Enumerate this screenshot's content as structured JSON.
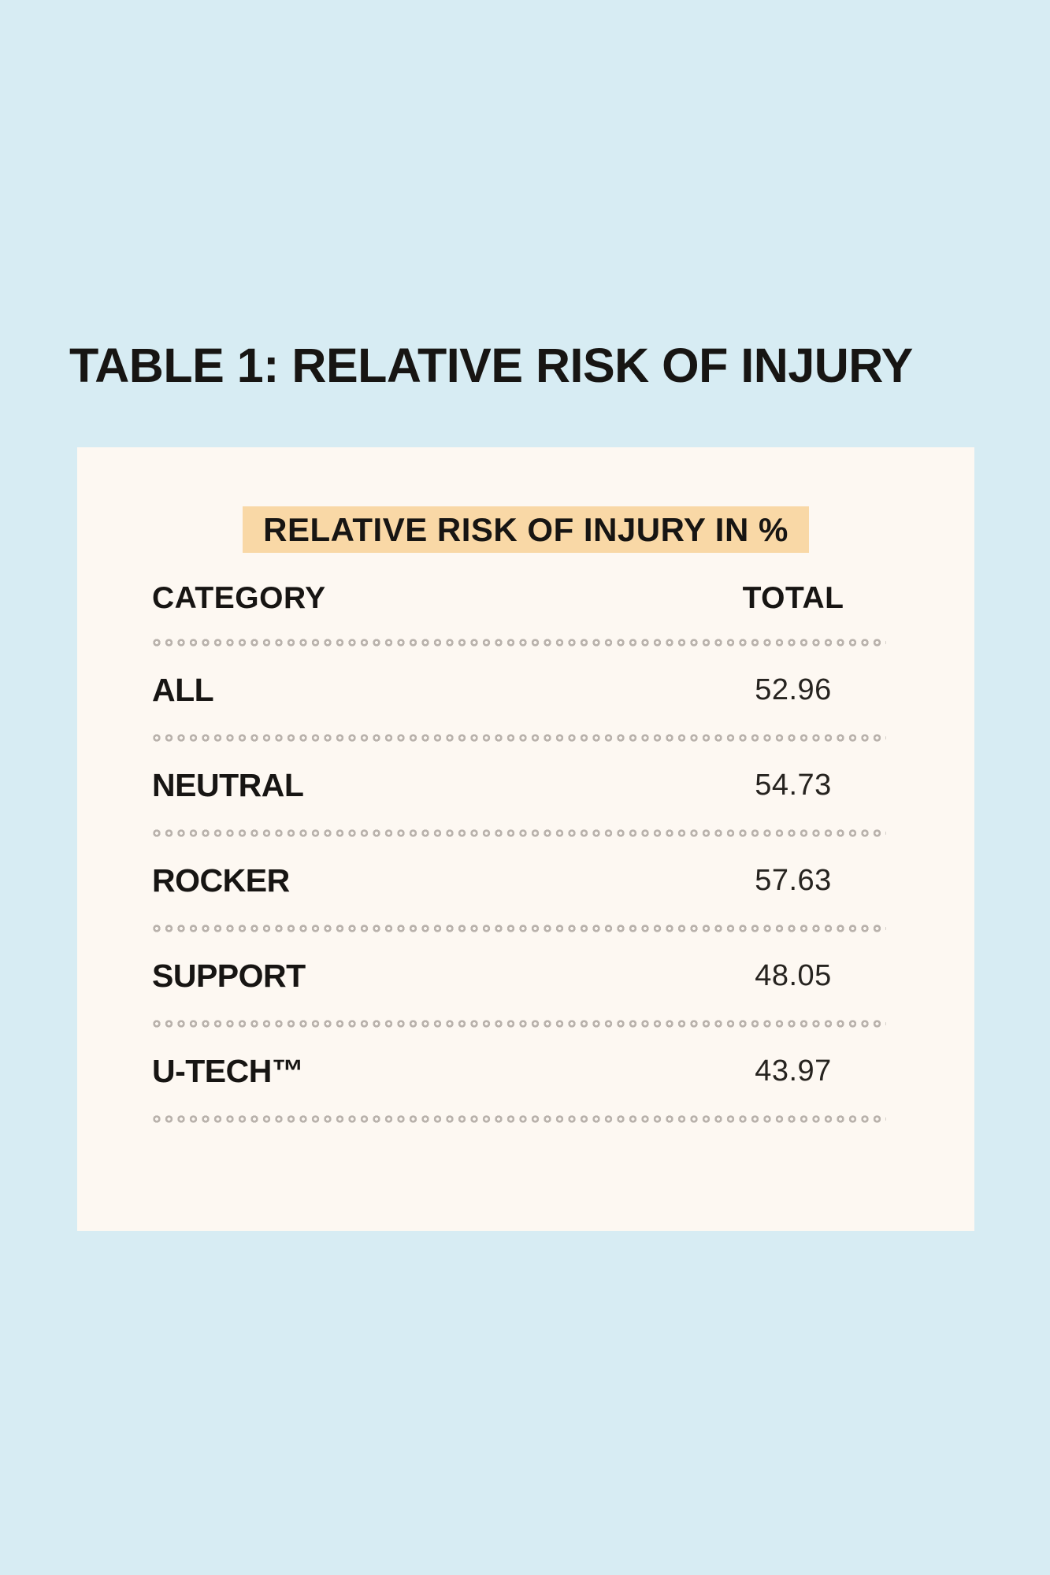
{
  "theme": {
    "page_bg": "#d7ecf3",
    "card_bg": "#fdf8f2",
    "highlight_bg": "#f9d8a6",
    "text_color": "#171513",
    "value_color": "#26231f",
    "dot_color": "#b9b2ac"
  },
  "page": {
    "title": "TABLE 1: RELATIVE RISK OF INJURY"
  },
  "table": {
    "header": "RELATIVE RISK OF INJURY IN %",
    "columns": {
      "category": "CATEGORY",
      "total": "TOTAL"
    },
    "rows": [
      {
        "category": "ALL",
        "total": "52.96"
      },
      {
        "category": "NEUTRAL",
        "total": "54.73"
      },
      {
        "category": "ROCKER",
        "total": "57.63"
      },
      {
        "category": "SUPPORT",
        "total": "48.05"
      },
      {
        "category": "U-TECH™",
        "total": "43.97"
      }
    ]
  },
  "chart_data": {
    "type": "table",
    "title": "RELATIVE RISK OF INJURY IN %",
    "columns": [
      "CATEGORY",
      "TOTAL"
    ],
    "categories": [
      "ALL",
      "NEUTRAL",
      "ROCKER",
      "SUPPORT",
      "U-TECH™"
    ],
    "values": [
      52.96,
      54.73,
      57.63,
      48.05,
      43.97
    ],
    "units": "percent"
  }
}
